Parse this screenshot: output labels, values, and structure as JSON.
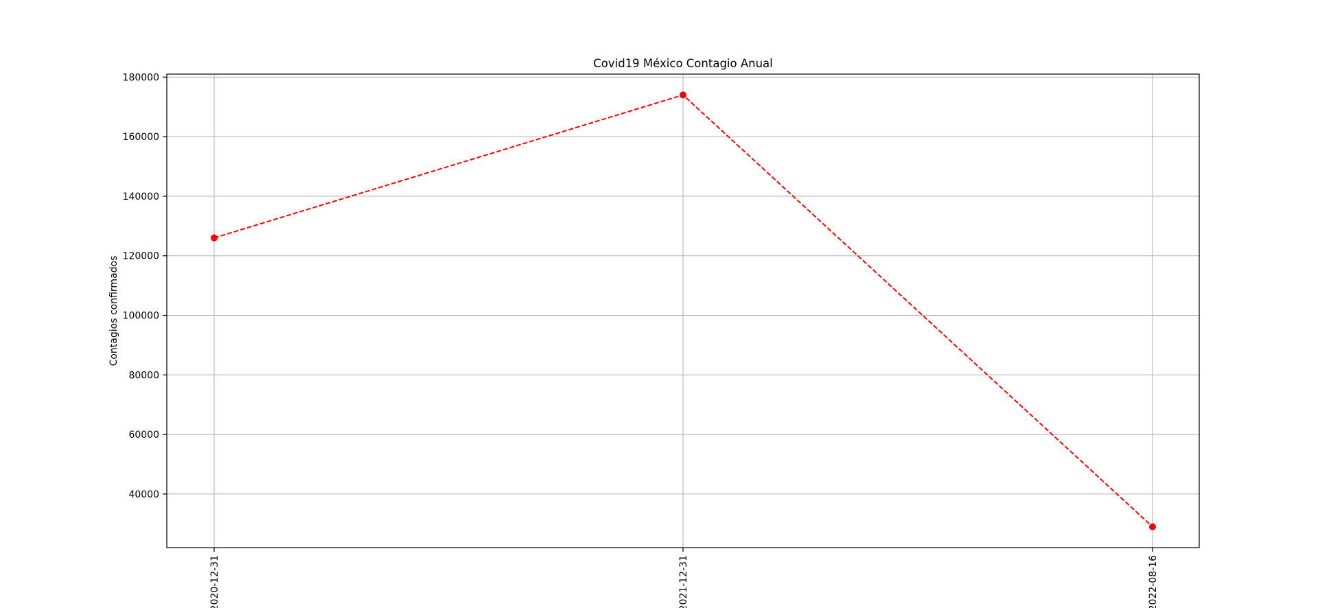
{
  "chart_data": {
    "type": "line",
    "title": "Covid19 México Contagio Anual",
    "xlabel": "",
    "ylabel": "Contagios confirmados",
    "categories": [
      "2020-12-31",
      "2021-12-31",
      "2022-08-16"
    ],
    "series": [
      {
        "name": "Contagios confirmados",
        "values": [
          126000,
          174000,
          29000
        ],
        "color": "#ff0000",
        "line_style": "dashed",
        "marker": "circle"
      }
    ],
    "ylim": [
      22000,
      181000
    ],
    "yticks": [
      40000,
      60000,
      80000,
      100000,
      120000,
      140000,
      160000,
      180000
    ],
    "ytick_labels": [
      "40000",
      "60000",
      "80000",
      "100000",
      "120000",
      "140000",
      "160000",
      "180000"
    ],
    "grid": true,
    "legend": "none"
  },
  "colors": {
    "grid": "#b0b0b0",
    "axes": "#000000",
    "background": "#ffffff"
  }
}
